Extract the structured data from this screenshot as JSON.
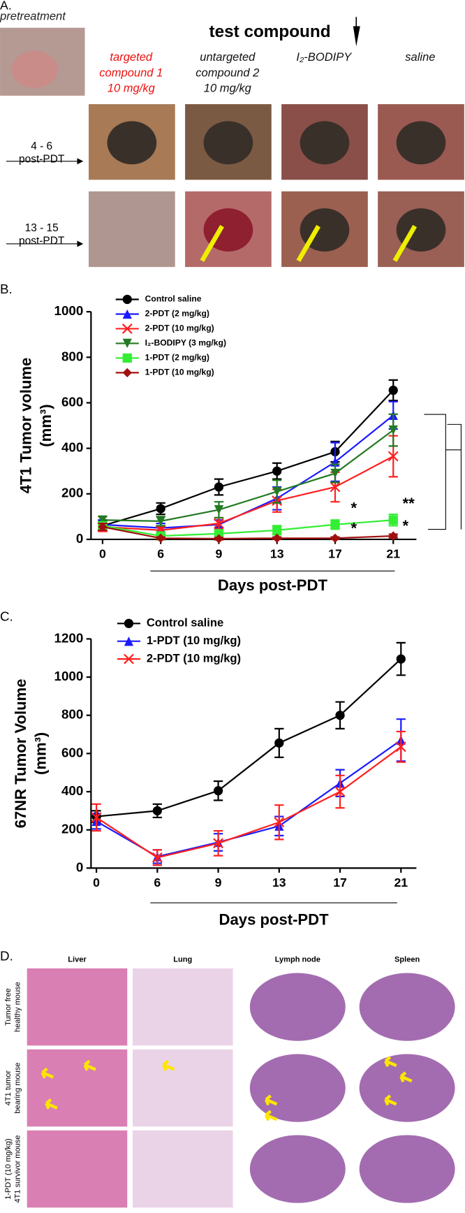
{
  "panel_a": {
    "label": "A.",
    "pretreatment": "pretreatment",
    "heading": "test compound",
    "columns": [
      [
        "targeted",
        "compound 1",
        "10 mg/kg"
      ],
      [
        "untargeted",
        "compound 2",
        "10 mg/kg"
      ],
      [
        "I₂-BODIPY"
      ],
      [
        "saline"
      ]
    ],
    "rows": [
      [
        "4 - 6",
        "post-PDT"
      ],
      [
        "13 - 15",
        "post-PDT"
      ]
    ]
  },
  "chart_data": [
    {
      "type": "line",
      "label": "B.",
      "ylabel": [
        "4T1 Tumor volume",
        "(mm³)"
      ],
      "xlabel": "Days post-PDT",
      "categories": [
        "0",
        "6",
        "9",
        "13",
        "17",
        "21"
      ],
      "ylim": [
        0,
        1000
      ],
      "yticks": [
        0,
        200,
        400,
        600,
        800,
        1000
      ],
      "annotations": [
        "*",
        "**",
        "*",
        "*"
      ],
      "series": [
        {
          "name": "Control saline",
          "color": "#000000",
          "marker": "circle",
          "values": [
            60,
            135,
            230,
            300,
            385,
            655
          ],
          "errors": [
            20,
            25,
            35,
            35,
            45,
            45
          ]
        },
        {
          "name": "2-PDT (2 mg/kg)",
          "color": "#1a1aff",
          "marker": "triangle",
          "values": [
            65,
            50,
            65,
            180,
            340,
            545
          ],
          "errors": [
            20,
            20,
            20,
            50,
            85,
            60
          ]
        },
        {
          "name": "2-PDT (10 mg/kg)",
          "color": "#ff2020",
          "marker": "x",
          "values": [
            55,
            40,
            70,
            170,
            230,
            365
          ],
          "errors": [
            20,
            15,
            25,
            50,
            65,
            90
          ]
        },
        {
          "name": "I₂-BODIPY (3 mg/kg)",
          "color": "#237a23",
          "marker": "triangle-down",
          "values": [
            85,
            80,
            130,
            210,
            290,
            480
          ],
          "errors": [
            15,
            20,
            35,
            50,
            40,
            70
          ]
        },
        {
          "name": "1-PDT (2 mg/kg)",
          "color": "#33ee33",
          "marker": "square",
          "values": [
            60,
            15,
            25,
            40,
            65,
            85
          ],
          "errors": [
            15,
            10,
            12,
            20,
            20,
            25
          ]
        },
        {
          "name": "1-PDT (10 mg/kg)",
          "color": "#a01010",
          "marker": "diamond",
          "values": [
            55,
            5,
            3,
            5,
            5,
            15
          ],
          "errors": [
            15,
            5,
            5,
            5,
            5,
            8
          ]
        }
      ]
    },
    {
      "type": "line",
      "label": "C.",
      "ylabel": [
        "67NR Tumor Volume",
        "(mm³)"
      ],
      "xlabel": "Days post-PDT",
      "categories": [
        "0",
        "6",
        "9",
        "13",
        "17",
        "21"
      ],
      "ylim": [
        0,
        1200
      ],
      "yticks": [
        0,
        200,
        400,
        600,
        800,
        1000,
        1200
      ],
      "series": [
        {
          "name": "Control saline",
          "color": "#000000",
          "marker": "circle",
          "values": [
            270,
            300,
            405,
            655,
            800,
            1095
          ],
          "errors": [
            30,
            35,
            50,
            75,
            70,
            85
          ]
        },
        {
          "name": "1-PDT (10 mg/kg)",
          "color": "#1a1aff",
          "marker": "triangle",
          "values": [
            245,
            60,
            135,
            220,
            445,
            670
          ],
          "errors": [
            40,
            35,
            45,
            50,
            70,
            110
          ]
        },
        {
          "name": "2-PDT (10 mg/kg)",
          "color": "#ff2020",
          "marker": "x",
          "values": [
            265,
            55,
            130,
            240,
            400,
            635
          ],
          "errors": [
            70,
            40,
            65,
            90,
            85,
            80
          ]
        }
      ]
    }
  ],
  "panel_d": {
    "label": "D.",
    "columns": [
      "Liver",
      "Lung",
      "Lymph node",
      "Spleen"
    ],
    "rows": [
      [
        "Tumor free",
        "healthy mouse"
      ],
      [
        "4T1 tumor",
        "bearing mouse"
      ],
      [
        "1-PDT (10 mg/kg)",
        "4T1 survivor mouse"
      ]
    ]
  }
}
